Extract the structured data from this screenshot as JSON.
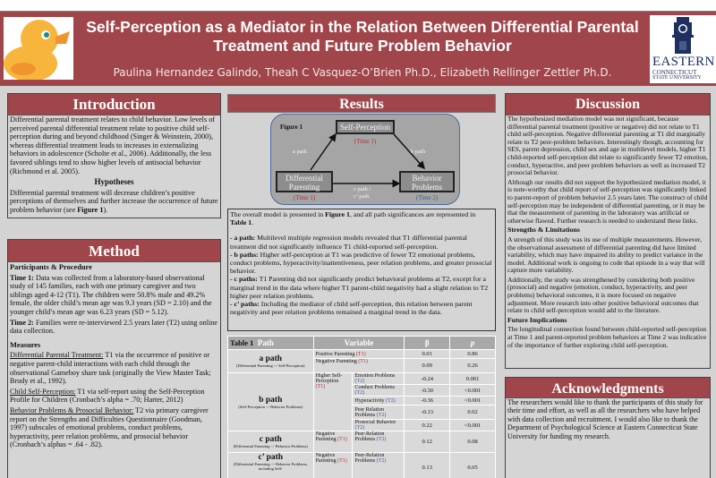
{
  "header": {
    "title": "Self-Perception as a Mediator in the Relation Between Differential Parental Treatment and Future Problem Behavior",
    "authors": "Paulina Hernandez Galindo, Theah C Vasquez-O’Brien Ph.D., Elizabeth Rellinger Zettler Ph.D.",
    "logo_left_icon": "rubber-duck-icon",
    "logo_right": {
      "line1": "EASTERN",
      "line2": "CONNECTICUT",
      "line3": "STATE UNIVERSITY"
    }
  },
  "colors": {
    "accent": "#a0464a",
    "panel_bg": "#d6d5d5",
    "time1": "#b03030",
    "time2": "#3a5c9a"
  },
  "introduction": {
    "heading": "Introduction",
    "body": "Differential parental treatment relates to child behavior. Low levels of perceived parental differential treatment relate to positive child self-perception during and beyond childhood (Singer & Weinstein, 2000), whereas differential treatment leads to increases in externalizing behaviors in adolescence (Scholte et al., 2006).  Additionally, the less favored siblings tend to show higher levels of antisocial behavior (Richmond et al. 2005).",
    "hypotheses_heading": "Hypotheses",
    "hypotheses_pre": "Differential parental treatment will decrease children’s positive perceptions of themselves and further increase the occurrence of future problem behavior (see ",
    "hypotheses_bold": "Figure 1",
    "hypotheses_post": ")."
  },
  "method": {
    "heading": "Method",
    "participants_heading": "Participants & Procedure",
    "time1_label": "Time 1:",
    "time1_text": " Data was collected from a laboratory-based observational study of 145 families, each with one primary caregiver and two siblings aged 4-12 (T1). The children were 50.8% male and 49.2% female, the older child’s mean age was 9.3 years (SD = 2.10) and the younger child’s mean age was 6.23 years (SD = 5.12).",
    "time2_label": "Time 2:",
    "time2_text": " Families were re-interviewed 2.5 years later (T2) using online data collection.",
    "measures_heading": "Measures",
    "m1_label": "Differential Parental Treatment:",
    "m1_text": " T1 via the occurrence of positive or negative parent-child interactions with each child through the observational Gameboy share task (originally the View Master Task; Brody et al., 1992).",
    "m2_label": "Child Self-Perception:",
    "m2_text": " T1 via self-report using the Self-Perception Profile for Children (Cronbach’s alpha = .70; Harter, 2012)",
    "m3_label": "Behavior Problems & Prosocial Behavior:",
    "m3_text": " T2 via primary caregiver report on the Strengths and Difficulties Questionnaire (Goodman, 1997) subscales of emotional problems, conduct problems, hyperactivity, peer relation problems, and prosocial behavior (Cronbach’s alphas = .64 - .82)."
  },
  "results": {
    "heading": "Results",
    "figure": {
      "label": "Figure 1",
      "self_perception": "Self-Perception",
      "self_perception_time": "(Time 1)",
      "differential": "Differential Parenting",
      "differential_time": "(Time 1)",
      "behavior": "Behavior Problems",
      "behavior_time": "(Time 2)",
      "a_path": "a path",
      "b_path": "b path",
      "c_path": "c path /",
      "c_prime_path": "c’ path"
    },
    "intro_pre": "The overall model is presented in ",
    "intro_fig": "Figure 1",
    "intro_mid": ", and all path significances are represented in ",
    "intro_table": "Table 1",
    "intro_post": ".",
    "a_label": "- a path:",
    "a_text": " Multilevel multiple regression models revealed that T1 differential parental treatment did not significantly influence T1 child-reported self-perception.",
    "b_label": "- b paths:",
    "b_text": " Higher self-perception at T1 was predictive of fewer T2 emotional problems, conduct problems, hyperactivity/inattentiveness, peer relation problems, and greater prosocial behavior.",
    "c_label": "- c paths:",
    "c_text": " T1 Parenting did not significantly predict behavioral problems at T2, except for a marginal trend in the data where higher T1 parent-child negativity had a slight relation to T2 higher peer relation problems.",
    "cp_label": "- c’ paths:",
    "cp_text": " Including the mediator of child self-perception, this relation between parent negativity and peer relation problems remained a marginal trend in the data."
  },
  "table": {
    "label": "Table 1",
    "headers": {
      "path": "Path",
      "variable": "Variable",
      "beta": "β",
      "p": "p"
    },
    "t1": "(T1)",
    "t2": "(T2)",
    "a_path": {
      "name": "a path",
      "desc": "(Differential Parenting -> Self-Perception)"
    },
    "b_path": {
      "name": "b path",
      "desc": "(Self-Perception -> Behavior Problems)",
      "predictor": "Higher Self-Perception"
    },
    "c_path": {
      "name": "c path",
      "desc": "(Differential Parenting -> Behavior Problems)",
      "predictor": "Negative Parenting"
    },
    "cp_path": {
      "name": "c’ path",
      "desc": "(Differential Parenting -> Behavior Problems, including Self-",
      "predictor": "Negative Parenting"
    },
    "rows": [
      {
        "variable": "Positive Parenting",
        "beta": "0.01",
        "p": "0.86"
      },
      {
        "variable": "Negative Parenting",
        "beta": "0.09",
        "p": "0.26"
      },
      {
        "variable": "Emotion Problems",
        "beta": "-0.24",
        "p": "0.001"
      },
      {
        "variable": "Conduct Problems",
        "beta": "-0.30",
        "p": "<0.001"
      },
      {
        "variable": "Hyperactivity",
        "beta": "-0.36",
        "p": "<0.001"
      },
      {
        "variable": "Peer Relation Problems",
        "beta": "-0.13",
        "p": "0.02"
      },
      {
        "variable": "Prosocial Behavior",
        "beta": "0.22",
        "p": "<0.001"
      },
      {
        "variable": "Peer-Relation Problems",
        "beta": "0.12",
        "p": "0.08"
      },
      {
        "variable": "Peer-Relation Problems",
        "beta": "0.13",
        "p": "0.05"
      }
    ]
  },
  "discussion": {
    "heading": "Discussion",
    "p1": "The hypothesized mediation model was not significant, because differential parental treatment (positive or negative) did not relate to T1 child self-perception. Negative differential parenting at T1 did marginally relate to T2 peer-problem behaviors. Interestingly though, accounting for SES, parent depression, child sex and age in multilevel models, higher T1 child-reported self-perception did relate to significantly fewer T2 emotion, conduct, hyperactive, and peer problem behaviors as well as increased T2 prosocial behavior.",
    "p2": "Although our results did not support the hypothesized mediation model, it is note-worthy that child report of self-perception was significantly linked to parent-report of problem behavior 2.5 years later. The construct of child self-perception may be independent of differential parenting, or it may be that the measurement of parenting in the laboratory was artificial or otherwise flawed. Further research is needed to understand these links.",
    "strengths_heading": "Strengths & Limitations",
    "p3": "A strength of this study was its use of multiple measurements. However, the observational assessment of differential parenting did have limited variability, which may have impaired its ability to predict variance in the model. Additional work is ongoing to code that episode in a way that will  capture more variability.",
    "p4": "Additionally, the study was strengthened by considering both positive (prosocial) and negative (emotion, conduct, hyperactivity, and peer problems) behavioral outcomes, it is more focused on negative adjustment. More research into other positive behavioral outcomes that relate to child self-perception would add to the literature.",
    "future_heading": "Future Implications",
    "p5": "The longitudinal connection found between child-reported self-perception at Time 1 and parent-reported problem behaviors at Time 2 was indicative of the importance of further exploring child self-perception."
  },
  "acknowledgments": {
    "heading": "Acknowledgments",
    "body": "The researchers would like to thank the participants of this study for their time and effort, as well as all the researchers who have helped with data collection and recruitment. I would also like to thank the Department of Psychological Science at Eastern Connecticut State University for funding my research."
  }
}
